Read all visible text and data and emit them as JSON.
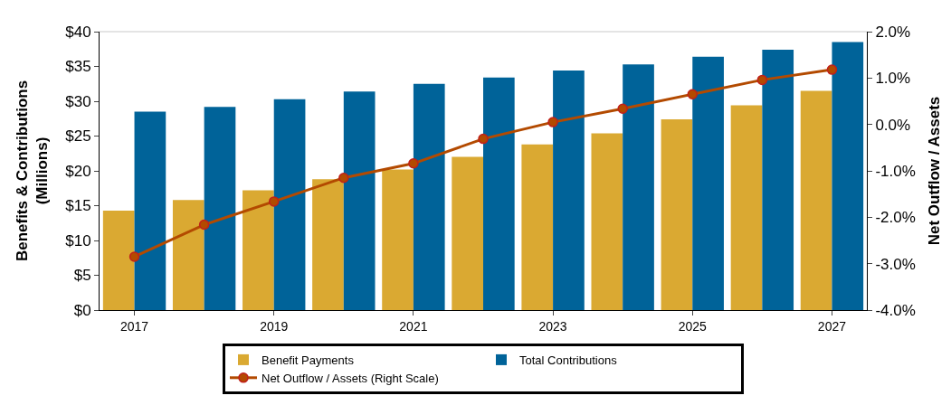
{
  "chart_data": {
    "type": "bar",
    "ylabel": "Benefits & Contributions\n(Millions)",
    "y2label": "Net Outflow / Assets",
    "x": [
      2017,
      2018,
      2019,
      2020,
      2021,
      2022,
      2023,
      2024,
      2025,
      2026,
      2027
    ],
    "xlim": [
      2016.5,
      2027.5
    ],
    "xticks": [
      2017,
      2019,
      2021,
      2023,
      2025,
      2027
    ],
    "ylim": [
      0,
      40
    ],
    "yticks": [
      {
        "value": 0,
        "label": "$0"
      },
      {
        "value": 5,
        "label": "$5"
      },
      {
        "value": 10,
        "label": "$10"
      },
      {
        "value": 15,
        "label": "$15"
      },
      {
        "value": 20,
        "label": "$20"
      },
      {
        "value": 25,
        "label": "$25"
      },
      {
        "value": 30,
        "label": "$30"
      },
      {
        "value": 35,
        "label": "$35"
      },
      {
        "value": 40,
        "label": "$40"
      }
    ],
    "y2lim": [
      -4,
      2
    ],
    "y2ticks": [
      {
        "value": -4,
        "label": "-4.0%"
      },
      {
        "value": -3,
        "label": "-3.0%"
      },
      {
        "value": -2,
        "label": "-2.0%"
      },
      {
        "value": -1,
        "label": "-1.0%"
      },
      {
        "value": 0,
        "label": "0.0%"
      },
      {
        "value": 1,
        "label": "1.0%"
      },
      {
        "value": 2,
        "label": "2.0%"
      }
    ],
    "legend": "bottom",
    "series": [
      {
        "name": "Benefit Payments",
        "color": "#daa932",
        "values": [
          14.3,
          15.8,
          17.2,
          18.8,
          20.2,
          22.0,
          23.8,
          25.4,
          27.4,
          29.4,
          31.5
        ]
      },
      {
        "name": "Total Contributions",
        "color": "#006399",
        "values": [
          28.5,
          29.2,
          30.3,
          31.4,
          32.5,
          33.4,
          34.4,
          35.3,
          36.4,
          37.4,
          38.5
        ]
      },
      {
        "name": "Net Outflow / Assets (Right Scale)",
        "type": "line",
        "axis": "y2",
        "color": "#b34a00",
        "marker": "circle",
        "line_style": "solid",
        "values": [
          -2.85,
          -2.16,
          -1.66,
          -1.15,
          -0.84,
          -0.31,
          0.05,
          0.34,
          0.65,
          0.96,
          1.18
        ]
      }
    ]
  }
}
